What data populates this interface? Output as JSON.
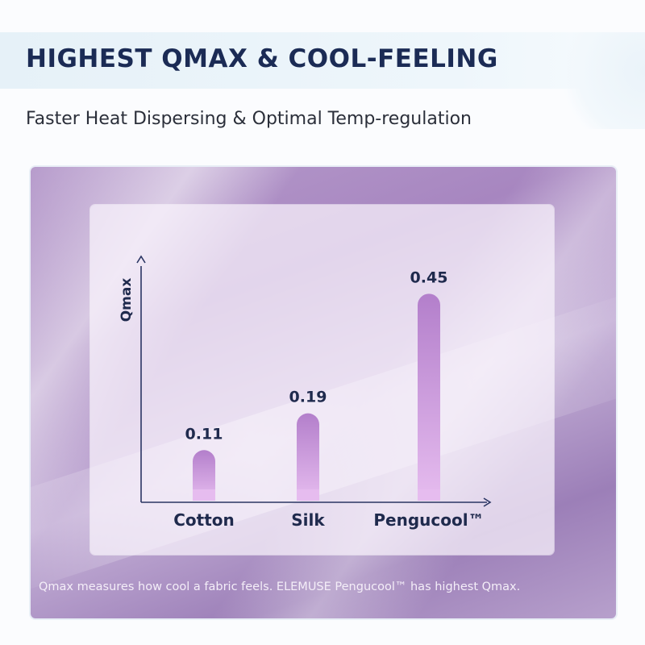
{
  "header": {
    "title": "HIGHEST QMAX & COOL-FEELING",
    "subtitle": "Faster Heat Dispersing & Optimal Temp-regulation"
  },
  "footnote": "Qmax measures how cool a fabric feels. ELEMUSE Pengucool™ has highest Qmax.",
  "colors": {
    "title": "#1b2b55",
    "axis": "#2a3563",
    "bar_light": "#e2b6ec",
    "bar_mid": "#d39fe2",
    "bar_dark": "#a978c4"
  },
  "chart_data": {
    "type": "bar",
    "categories": [
      "Cotton",
      "Silk",
      "Pengucool™"
    ],
    "values": [
      0.11,
      0.19,
      0.45
    ],
    "data_labels": [
      "0.11",
      "0.19",
      "0.45"
    ],
    "title": "",
    "xlabel": "",
    "ylabel": "Qmax",
    "ylim": [
      0,
      0.5
    ],
    "grid": false,
    "legend": "none"
  }
}
